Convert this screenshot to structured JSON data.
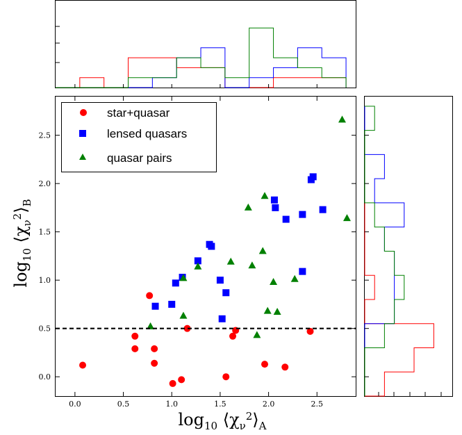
{
  "chart_data": [
    {
      "type": "scatter",
      "xlabel": "log10 ⟨χν²⟩A",
      "ylabel": "log10 ⟨χν²⟩B",
      "xlim": [
        -0.2,
        2.9
      ],
      "ylim": [
        -0.2,
        2.9
      ],
      "xticks": [
        "0.0",
        "0.5",
        "1.0",
        "1.5",
        "2.0",
        "2.5"
      ],
      "yticks": [
        "0.0",
        "0.5",
        "1.0",
        "1.5",
        "2.0",
        "2.5"
      ],
      "threshold_line": {
        "y": 0.5,
        "style": "dashed"
      },
      "legend_position": "top-left",
      "series": [
        {
          "name": "star+quasar",
          "color": "#ff0000",
          "marker": "circle",
          "points": [
            [
              0.08,
              0.12
            ],
            [
              0.62,
              0.42
            ],
            [
              0.62,
              0.29
            ],
            [
              0.77,
              0.84
            ],
            [
              0.82,
              0.29
            ],
            [
              0.82,
              0.14
            ],
            [
              1.01,
              -0.07
            ],
            [
              1.1,
              -0.03
            ],
            [
              1.16,
              0.5
            ],
            [
              1.56,
              0.0
            ],
            [
              1.63,
              0.42
            ],
            [
              1.66,
              0.48
            ],
            [
              1.96,
              0.13
            ],
            [
              2.17,
              0.1
            ],
            [
              2.43,
              0.47
            ]
          ]
        },
        {
          "name": "lensed quasars",
          "color": "#0000ff",
          "marker": "square",
          "points": [
            [
              0.83,
              0.73
            ],
            [
              1.0,
              0.75
            ],
            [
              1.04,
              0.97
            ],
            [
              1.11,
              1.03
            ],
            [
              1.27,
              1.2
            ],
            [
              1.39,
              1.37
            ],
            [
              1.41,
              1.35
            ],
            [
              1.5,
              1.0
            ],
            [
              1.52,
              0.6
            ],
            [
              1.56,
              0.87
            ],
            [
              2.06,
              1.83
            ],
            [
              2.07,
              1.75
            ],
            [
              2.18,
              1.63
            ],
            [
              2.35,
              1.68
            ],
            [
              2.35,
              1.09
            ],
            [
              2.44,
              2.04
            ],
            [
              2.46,
              2.07
            ],
            [
              2.56,
              1.73
            ]
          ]
        },
        {
          "name": "quasar pairs",
          "color": "#008000",
          "marker": "triangle",
          "points": [
            [
              0.78,
              0.52
            ],
            [
              1.12,
              0.63
            ],
            [
              1.12,
              1.02
            ],
            [
              1.27,
              1.14
            ],
            [
              1.61,
              1.19
            ],
            [
              1.79,
              1.75
            ],
            [
              1.83,
              1.15
            ],
            [
              1.88,
              0.43
            ],
            [
              1.94,
              1.3
            ],
            [
              1.96,
              1.87
            ],
            [
              1.99,
              0.68
            ],
            [
              2.05,
              0.98
            ],
            [
              2.09,
              0.67
            ],
            [
              2.27,
              1.01
            ],
            [
              2.76,
              2.66
            ],
            [
              2.81,
              1.64
            ]
          ]
        }
      ]
    },
    {
      "type": "histogram",
      "orientation": "vertical",
      "variable": "log10 ⟨χν²⟩A",
      "bin_edges": [
        -0.2,
        0.05,
        0.3,
        0.55,
        0.8,
        1.05,
        1.3,
        1.55,
        1.8,
        2.05,
        2.3,
        2.55,
        2.8
      ],
      "series": [
        {
          "name": "star+quasar",
          "color": "#ff0000",
          "counts": [
            0,
            1,
            0,
            3,
            3,
            2,
            2,
            0,
            0,
            1,
            1,
            1
          ]
        },
        {
          "name": "lensed quasars",
          "color": "#0000ff",
          "counts": [
            0,
            0,
            0,
            0,
            1,
            3,
            4,
            0,
            1,
            2,
            4,
            3
          ]
        },
        {
          "name": "quasar pairs",
          "color": "#008000",
          "counts": [
            0,
            0,
            0,
            1,
            1,
            3,
            2,
            1,
            6,
            3,
            2,
            1
          ]
        }
      ]
    },
    {
      "type": "histogram",
      "orientation": "horizontal",
      "variable": "log10 ⟨χν²⟩B",
      "bin_edges": [
        -0.2,
        0.05,
        0.3,
        0.55,
        0.8,
        1.05,
        1.3,
        1.55,
        1.8,
        2.05,
        2.3,
        2.55,
        2.8
      ],
      "series": [
        {
          "name": "star+quasar",
          "color": "#ff0000",
          "counts": [
            2,
            5,
            7,
            0,
            1,
            0,
            0,
            0,
            0,
            0,
            0,
            0
          ]
        },
        {
          "name": "lensed quasars",
          "color": "#0000ff",
          "counts": [
            0,
            0,
            0,
            3,
            3,
            3,
            2,
            4,
            1,
            2,
            0,
            0
          ]
        },
        {
          "name": "quasar pairs",
          "color": "#008000",
          "counts": [
            0,
            0,
            2,
            3,
            4,
            3,
            2,
            1,
            0,
            0,
            0,
            1
          ]
        }
      ]
    }
  ]
}
